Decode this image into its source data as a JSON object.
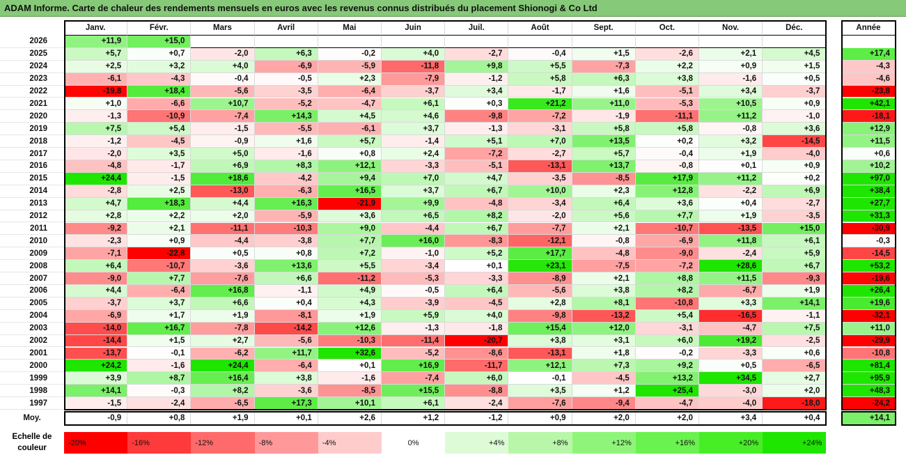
{
  "title": "ADAM Informe. Carte de chaleur des rendements mensuels en euros avec les revenus connus distribués du placement Shionogi & Co Ltd",
  "chart_data": {
    "type": "heatmap",
    "months": [
      "Janv.",
      "Févr.",
      "Mars",
      "Avril",
      "Mai",
      "Juin",
      "Juil.",
      "Août",
      "Sept.",
      "Oct.",
      "Nov.",
      "Déc."
    ],
    "year_header": "Année",
    "avg_label": "Moy.",
    "rows": [
      {
        "year": "2026",
        "values": [
          "+11,9",
          "+15,0",
          null,
          null,
          null,
          null,
          null,
          null,
          null,
          null,
          null,
          null
        ],
        "annual": null
      },
      {
        "year": "2025",
        "values": [
          "+5,7",
          "+0,7",
          "-2,0",
          "+6,3",
          "-0,2",
          "+4,0",
          "-2,7",
          "-0,4",
          "+1,5",
          "-2,6",
          "+2,1",
          "+4,5"
        ],
        "annual": "+17,4"
      },
      {
        "year": "2024",
        "values": [
          "+2,5",
          "+3,2",
          "+4,0",
          "-6,9",
          "-5,9",
          "-11,8",
          "+9,8",
          "+5,5",
          "-7,3",
          "+2,2",
          "+0,9",
          "+1,5"
        ],
        "annual": "-4,3"
      },
      {
        "year": "2023",
        "values": [
          "-6,1",
          "-4,3",
          "-0,4",
          "-0,5",
          "+2,3",
          "-7,9",
          "-1,2",
          "+5,8",
          "+6,3",
          "+3,8",
          "-1,6",
          "+0,5"
        ],
        "annual": "-4,6"
      },
      {
        "year": "2022",
        "values": [
          "-19,8",
          "+18,4",
          "-5,6",
          "-3,5",
          "-6,4",
          "-3,7",
          "+3,4",
          "-1,7",
          "+1,6",
          "-5,1",
          "+3,4",
          "-3,7"
        ],
        "annual": "-23,8"
      },
      {
        "year": "2021",
        "values": [
          "+1,0",
          "-6,6",
          "+10,7",
          "-5,2",
          "-4,7",
          "+6,1",
          "+0,3",
          "+21,2",
          "+11,0",
          "-5,3",
          "+10,5",
          "+0,9"
        ],
        "annual": "+42,1"
      },
      {
        "year": "2020",
        "values": [
          "-1,3",
          "-10,9",
          "-7,4",
          "+14,3",
          "+4,5",
          "+4,6",
          "-9,8",
          "-7,2",
          "-1,9",
          "-11,1",
          "+11,2",
          "-1,0"
        ],
        "annual": "-18,1"
      },
      {
        "year": "2019",
        "values": [
          "+7,5",
          "+5,4",
          "-1,5",
          "-5,5",
          "-6,1",
          "+3,7",
          "-1,3",
          "-3,1",
          "+5,8",
          "+5,8",
          "-0,8",
          "+3,6"
        ],
        "annual": "+12,9"
      },
      {
        "year": "2018",
        "values": [
          "-1,2",
          "-4,5",
          "-0,9",
          "+1,6",
          "+5,7",
          "-1,4",
          "+5,1",
          "+7,0",
          "+13,5",
          "+0,2",
          "+3,2",
          "-14,5"
        ],
        "annual": "+11,5"
      },
      {
        "year": "2017",
        "values": [
          "-2,0",
          "+3,5",
          "+5,0",
          "-1,6",
          "+0,8",
          "+2,4",
          "-7,2",
          "-2,7",
          "+5,7",
          "-0,4",
          "+1,9",
          "-4,0"
        ],
        "annual": "+0,6"
      },
      {
        "year": "2016",
        "values": [
          "-4,8",
          "-1,7",
          "+6,9",
          "+8,3",
          "+12,1",
          "-3,3",
          "-5,1",
          "-13,1",
          "+13,7",
          "-0,8",
          "+0,1",
          "+0,9"
        ],
        "annual": "+10,2"
      },
      {
        "year": "2015",
        "values": [
          "+24,4",
          "-1,5",
          "+18,6",
          "-4,2",
          "+9,4",
          "+7,0",
          "+4,7",
          "-3,5",
          "-8,5",
          "+17,9",
          "+11,2",
          "+0,2"
        ],
        "annual": "+97,0"
      },
      {
        "year": "2014",
        "values": [
          "-2,8",
          "+2,5",
          "-13,0",
          "-6,3",
          "+16,5",
          "+3,7",
          "+6,7",
          "+10,0",
          "+2,3",
          "+12,8",
          "-2,2",
          "+6,9"
        ],
        "annual": "+38,4"
      },
      {
        "year": "2013",
        "values": [
          "+4,7",
          "+18,3",
          "+4,4",
          "+16,3",
          "-21,9",
          "+9,9",
          "-4,8",
          "-3,4",
          "+6,4",
          "+3,6",
          "+0,4",
          "-2,7"
        ],
        "annual": "+27,7"
      },
      {
        "year": "2012",
        "values": [
          "+2,8",
          "+2,2",
          "+2,0",
          "-5,9",
          "+3,6",
          "+6,5",
          "+8,2",
          "-2,0",
          "+5,6",
          "+7,7",
          "+1,9",
          "-3,5"
        ],
        "annual": "+31,3"
      },
      {
        "year": "2011",
        "values": [
          "-9,2",
          "+2,1",
          "-11,1",
          "-10,3",
          "+9,0",
          "-4,4",
          "+6,7",
          "-7,7",
          "+2,1",
          "-10,7",
          "-13,5",
          "+15,0"
        ],
        "annual": "-30,9"
      },
      {
        "year": "2010",
        "values": [
          "-2,3",
          "+0,9",
          "-4,4",
          "-3,8",
          "+7,7",
          "+16,0",
          "-8,3",
          "-12,1",
          "-0,8",
          "-6,9",
          "+11,8",
          "+6,1"
        ],
        "annual": "-0,3"
      },
      {
        "year": "2009",
        "values": [
          "-7,1",
          "-22,8",
          "+0,5",
          "+0,8",
          "+7,2",
          "-1,0",
          "+5,2",
          "+17,7",
          "-4,8",
          "-9,0",
          "-2,4",
          "+5,9"
        ],
        "annual": "-14,5"
      },
      {
        "year": "2008",
        "values": [
          "+6,4",
          "-10,7",
          "-3,6",
          "+13,6",
          "+5,5",
          "-3,4",
          "+0,1",
          "+23,1",
          "-7,5",
          "-7,2",
          "+28,6",
          "+6,7"
        ],
        "annual": "+53,2"
      },
      {
        "year": "2007",
        "values": [
          "-9,0",
          "+7,7",
          "-7,6",
          "+6,6",
          "-11,2",
          "-5,3",
          "-3,3",
          "-8,9",
          "+2,1",
          "+8,8",
          "+11,5",
          "-9,3"
        ],
        "annual": "-19,6"
      },
      {
        "year": "2006",
        "values": [
          "+4,4",
          "-6,4",
          "+16,8",
          "-1,1",
          "+4,9",
          "-0,5",
          "+6,4",
          "-5,6",
          "+3,8",
          "+8,2",
          "-6,7",
          "+1,9"
        ],
        "annual": "+26,4"
      },
      {
        "year": "2005",
        "values": [
          "-3,7",
          "+3,7",
          "+6,6",
          "+0,4",
          "+4,3",
          "-3,9",
          "-4,5",
          "+2,8",
          "+8,1",
          "-10,8",
          "+3,3",
          "+14,1"
        ],
        "annual": "+19,6"
      },
      {
        "year": "2004",
        "values": [
          "-6,9",
          "+1,7",
          "+1,9",
          "-8,1",
          "+1,9",
          "+5,9",
          "+4,0",
          "-9,8",
          "-13,2",
          "+5,4",
          "-16,5",
          "-1,1"
        ],
        "annual": "-32,1"
      },
      {
        "year": "2003",
        "values": [
          "-14,0",
          "+16,7",
          "-7,8",
          "-14,2",
          "+12,6",
          "-1,3",
          "-1,8",
          "+15,4",
          "+12,0",
          "-3,1",
          "-4,7",
          "+7,5"
        ],
        "annual": "+11,0"
      },
      {
        "year": "2002",
        "values": [
          "-14,4",
          "+1,5",
          "+2,7",
          "-5,6",
          "-10,3",
          "-11,4",
          "-20,7",
          "+3,8",
          "+3,1",
          "+6,0",
          "+19,2",
          "-2,5"
        ],
        "annual": "-29,9"
      },
      {
        "year": "2001",
        "values": [
          "-13,7",
          "-0,1",
          "-6,2",
          "+11,7",
          "+32,6",
          "-5,2",
          "-8,6",
          "-13,1",
          "+1,8",
          "-0,2",
          "-3,3",
          "+0,6"
        ],
        "annual": "-10,8"
      },
      {
        "year": "2000",
        "values": [
          "+24,2",
          "-1,6",
          "+24,4",
          "-6,4",
          "+0,1",
          "+16,9",
          "-11,7",
          "+12,1",
          "+7,3",
          "+9,2",
          "+0,5",
          "-6,5"
        ],
        "annual": "+81,4"
      },
      {
        "year": "1999",
        "values": [
          "+3,9",
          "+8,7",
          "+16,4",
          "+3,8",
          "-1,6",
          "-7,4",
          "+6,0",
          "-0,1",
          "-4,5",
          "+13,2",
          "+34,5",
          "+2,7"
        ],
        "annual": "+95,9"
      },
      {
        "year": "1998",
        "values": [
          "+14,1",
          "-0,3",
          "+8,2",
          "-3,6",
          "-8,5",
          "+15,5",
          "-8,8",
          "+3,5",
          "+1,2",
          "+25,4",
          "-3,0",
          "+2,0"
        ],
        "annual": "+48,3"
      },
      {
        "year": "1997",
        "values": [
          "-1,5",
          "-2,4",
          "-6,5",
          "+17,3",
          "+10,1",
          "+6,1",
          "-2,4",
          "-7,6",
          "-9,4",
          "-4,7",
          "-4,0",
          "-18,0"
        ],
        "annual": "-24,2"
      }
    ],
    "averages": [
      "-0,9",
      "+0,8",
      "+1,9",
      "+0,1",
      "+2,6",
      "+1,2",
      "-1,2",
      "+0,9",
      "+2,0",
      "+2,0",
      "+3,4",
      "+0,4"
    ],
    "annual_average": "+14,1",
    "legend": {
      "title_line1": "Echelle de",
      "title_line2": "couleur",
      "steps": [
        {
          "label": "-20%",
          "color": "#ff0000"
        },
        {
          "label": "-16%",
          "color": "#ff3a3a"
        },
        {
          "label": "-12%",
          "color": "#ff6b6b"
        },
        {
          "label": "-8%",
          "color": "#ff9999"
        },
        {
          "label": "-4%",
          "color": "#ffcccc"
        },
        {
          "label": "0%",
          "color": "#ffffff"
        },
        {
          "label": "+4%",
          "color": "#ddfbd6"
        },
        {
          "label": "+8%",
          "color": "#b8f7a9"
        },
        {
          "label": "+12%",
          "color": "#8ff57a"
        },
        {
          "label": "+16%",
          "color": "#6af250"
        },
        {
          "label": "+20%",
          "color": "#47ee26"
        },
        {
          "label": "+24%",
          "color": "#1fe600"
        }
      ]
    }
  }
}
